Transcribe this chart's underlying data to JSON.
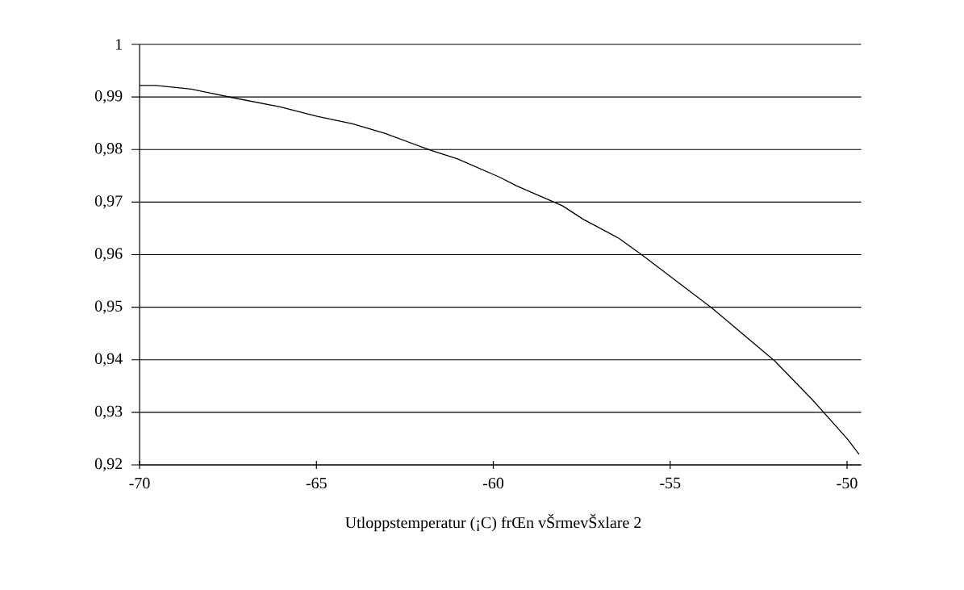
{
  "chart_data": {
    "type": "line",
    "xlabel": "Utloppstemperatur (¡C) frŒn vŠrmevŠxlare 2",
    "x": [
      -70,
      -69.54,
      -68.54,
      -67.4,
      -66.03,
      -64.98,
      -63.98,
      -63.07,
      -61.79,
      -61.01,
      -59.81,
      -59.35,
      -58.05,
      -57.45,
      -56.45,
      -55.77,
      -53.81,
      -52.05,
      -50.98,
      -50.0,
      -49.66
    ],
    "values": [
      0.9922,
      0.9922,
      0.9915,
      0.9899,
      0.9881,
      0.9863,
      0.9849,
      0.9831,
      0.9799,
      0.9782,
      0.9747,
      0.9731,
      0.9693,
      0.9667,
      0.9631,
      0.9598,
      0.9498,
      0.9398,
      0.9324,
      0.925,
      0.922
    ],
    "color": "#000000",
    "xlim": [
      -70,
      -49.6
    ],
    "ylim": [
      0.92,
      1
    ],
    "xticks": [
      -70,
      -65,
      -60,
      -55,
      -50
    ],
    "yticks": [
      {
        "value": 0.92,
        "label": "0,92"
      },
      {
        "value": 0.93,
        "label": "0,93"
      },
      {
        "value": 0.94,
        "label": "0,94"
      },
      {
        "value": 0.95,
        "label": "0,95"
      },
      {
        "value": 0.96,
        "label": "0,96"
      },
      {
        "value": 0.97,
        "label": "0,97"
      },
      {
        "value": 0.98,
        "label": "0,98"
      },
      {
        "value": 0.99,
        "label": "0,99"
      },
      {
        "value": 1,
        "label": "1"
      }
    ],
    "grid": "y",
    "marker": "none",
    "line_style": "solid"
  }
}
